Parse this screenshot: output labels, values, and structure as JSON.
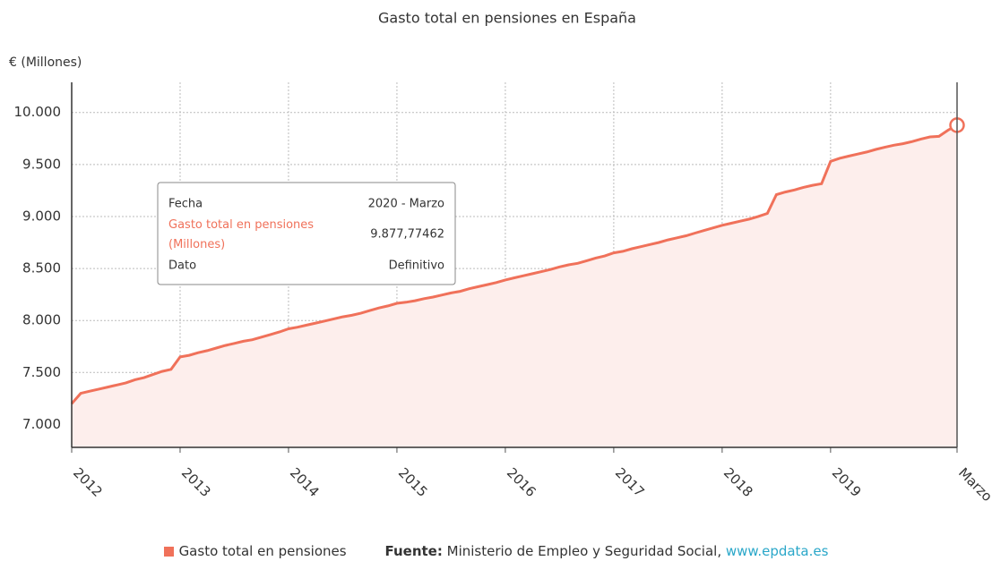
{
  "chart_data": {
    "type": "area",
    "title": "Gasto total en pensiones en España",
    "y_label": "€ (Millones)",
    "categories": [
      "2012",
      null,
      null,
      null,
      null,
      null,
      null,
      null,
      null,
      null,
      null,
      null,
      "2013",
      null,
      null,
      null,
      null,
      null,
      null,
      null,
      null,
      null,
      null,
      null,
      "2014",
      null,
      null,
      null,
      null,
      null,
      null,
      null,
      null,
      null,
      null,
      null,
      "2015",
      null,
      null,
      null,
      null,
      null,
      null,
      null,
      null,
      null,
      null,
      null,
      "2016",
      null,
      null,
      null,
      null,
      null,
      null,
      null,
      null,
      null,
      null,
      null,
      "2017",
      null,
      null,
      null,
      null,
      null,
      null,
      null,
      null,
      null,
      null,
      null,
      "2018",
      null,
      null,
      null,
      null,
      null,
      null,
      null,
      null,
      null,
      null,
      null,
      "2019",
      null,
      null,
      null,
      null,
      null,
      null,
      null,
      null,
      null,
      null,
      null,
      null,
      null,
      "Marzo"
    ],
    "series": [
      {
        "name": "Gasto total en pensiones",
        "color": "#f0715a",
        "fill": "#fdeeec",
        "values": [
          7200,
          7300,
          7320,
          7340,
          7360,
          7380,
          7400,
          7430,
          7450,
          7480,
          7510,
          7530,
          7650,
          7665,
          7690,
          7710,
          7735,
          7760,
          7780,
          7800,
          7815,
          7840,
          7865,
          7890,
          7920,
          7935,
          7955,
          7975,
          7995,
          8015,
          8035,
          8050,
          8070,
          8095,
          8120,
          8140,
          8165,
          8175,
          8190,
          8210,
          8225,
          8245,
          8265,
          8280,
          8305,
          8325,
          8345,
          8365,
          8390,
          8410,
          8430,
          8450,
          8470,
          8490,
          8515,
          8535,
          8550,
          8575,
          8600,
          8620,
          8650,
          8665,
          8690,
          8710,
          8730,
          8750,
          8775,
          8795,
          8815,
          8840,
          8865,
          8890,
          8915,
          8935,
          8955,
          8975,
          9000,
          9030,
          9210,
          9235,
          9255,
          9280,
          9300,
          9315,
          9530,
          9560,
          9580,
          9600,
          9620,
          9645,
          9665,
          9685,
          9700,
          9720,
          9745,
          9765,
          9770,
          9830,
          9877.77462
        ]
      }
    ],
    "ylim": [
      6780,
      10290
    ],
    "yticks": [
      {
        "value": 7000,
        "label": "7.000"
      },
      {
        "value": 7500,
        "label": "7.500"
      },
      {
        "value": 8000,
        "label": "8.000"
      },
      {
        "value": 8500,
        "label": "8.500"
      },
      {
        "value": 9000,
        "label": "9.000"
      },
      {
        "value": 9500,
        "label": "9.500"
      },
      {
        "value": 10000,
        "label": "10.000"
      }
    ],
    "grid": true,
    "tooltip": {
      "rows": [
        {
          "label": "Fecha",
          "value": "2020 - Marzo"
        },
        {
          "label": "Gasto total en pensiones (Millones)",
          "value": "9.877,77462"
        },
        {
          "label": "Dato",
          "value": "Definitivo"
        }
      ]
    },
    "source": {
      "label": "Fuente:",
      "text": "Ministerio de Empleo y Seguridad Social,",
      "link": "www.epdata.es"
    }
  }
}
